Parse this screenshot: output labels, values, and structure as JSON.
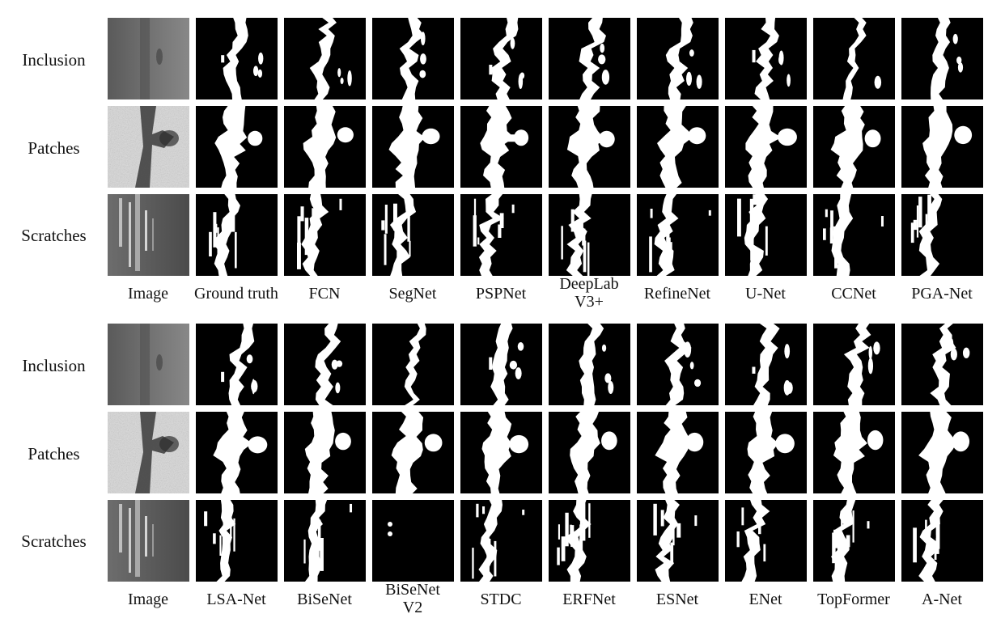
{
  "row_labels": [
    "Inclusion",
    "Patches",
    "Scratches"
  ],
  "panels": [
    {
      "columns": [
        "Image",
        "Ground truth",
        "FCN",
        "SegNet",
        "PSPNet",
        "DeepLab V3+",
        "RefineNet",
        "U-Net",
        "CCNet",
        "PGA-Net"
      ],
      "label_lines": [
        [
          "Image"
        ],
        [
          "Ground truth"
        ],
        [
          "FCN"
        ],
        [
          "SegNet"
        ],
        [
          "PSPNet"
        ],
        [
          "DeepLab",
          "V3+"
        ],
        [
          "RefineNet"
        ],
        [
          "U-Net"
        ],
        [
          "CCNet"
        ],
        [
          "PGA-Net"
        ]
      ]
    },
    {
      "columns": [
        "Image",
        "LSA-Net",
        "BiSeNet",
        "BiSeNet V2",
        "STDC",
        "ERFNet",
        "ESNet",
        "ENet",
        "TopFormer",
        "A-Net"
      ],
      "label_lines": [
        [
          "Image"
        ],
        [
          "LSA-Net"
        ],
        [
          "BiSeNet"
        ],
        [
          "BiSeNet",
          "V2"
        ],
        [
          "STDC"
        ],
        [
          "ERFNet"
        ],
        [
          "ESNet"
        ],
        [
          "ENet"
        ],
        [
          "TopFormer"
        ],
        [
          "A-Net"
        ]
      ]
    }
  ]
}
